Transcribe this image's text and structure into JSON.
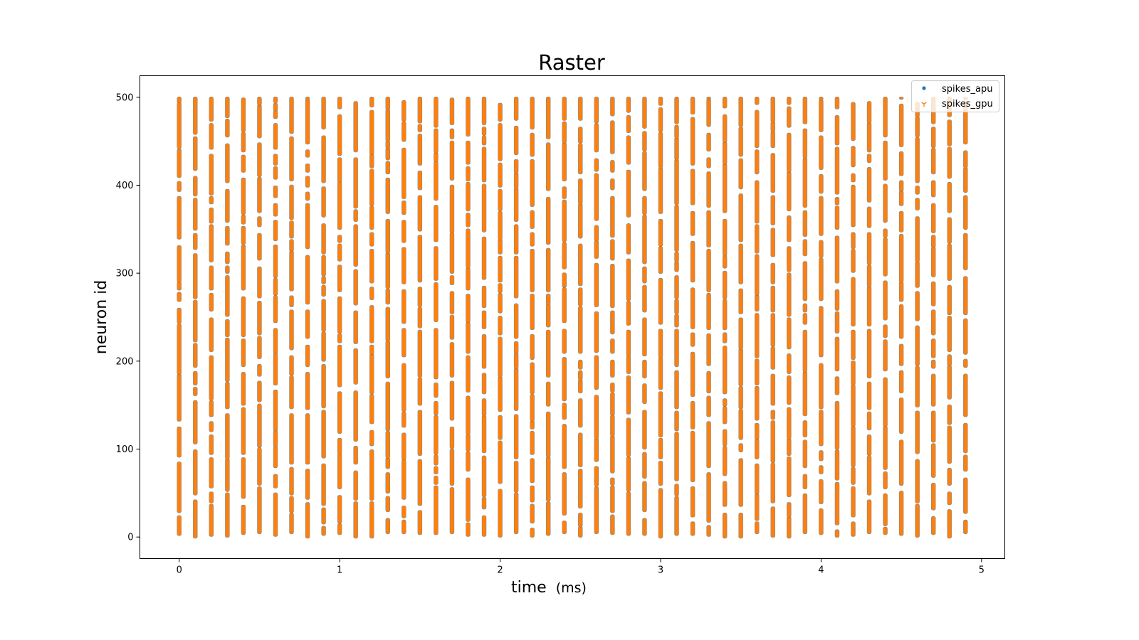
{
  "chart_data": {
    "type": "scatter",
    "title": "Raster",
    "xlabel": "time",
    "xlabel_unit": "(ms)",
    "ylabel": "neuron id",
    "xlim": [
      -0.245,
      5.145
    ],
    "ylim": [
      -24.5,
      524.5
    ],
    "x_ticks": [
      0,
      1,
      2,
      3,
      4,
      5
    ],
    "x_tick_labels": [
      "0",
      "1",
      "2",
      "3",
      "4",
      "5"
    ],
    "y_ticks": [
      0,
      100,
      200,
      300,
      400,
      500
    ],
    "y_tick_labels": [
      "0",
      "100",
      "200",
      "300",
      "400",
      "500"
    ],
    "grid": false,
    "legend_position": "top-right",
    "spike_times_ms": [
      0,
      0.1,
      0.2,
      0.3,
      0.4,
      0.5,
      0.6,
      0.7,
      0.8,
      0.9,
      1.0,
      1.1,
      1.2,
      1.3,
      1.4,
      1.5,
      1.6,
      1.7,
      1.8,
      1.9,
      2.0,
      2.1,
      2.2,
      2.3,
      2.4,
      2.5,
      2.6,
      2.7,
      2.8,
      2.9,
      3.0,
      3.1,
      3.2,
      3.3,
      3.4,
      3.5,
      3.6,
      3.7,
      3.8,
      3.9,
      4.0,
      4.1,
      4.2,
      4.3,
      4.4,
      4.5,
      4.6,
      4.7,
      4.8,
      4.9
    ],
    "neuron_id_range": [
      0,
      499
    ],
    "series": [
      {
        "name": "spikes_apu",
        "marker": "dot",
        "color": "#1f77b4"
      },
      {
        "name": "spikes_gpu",
        "marker": "tri_down",
        "color": "#ff7f0e"
      }
    ]
  }
}
